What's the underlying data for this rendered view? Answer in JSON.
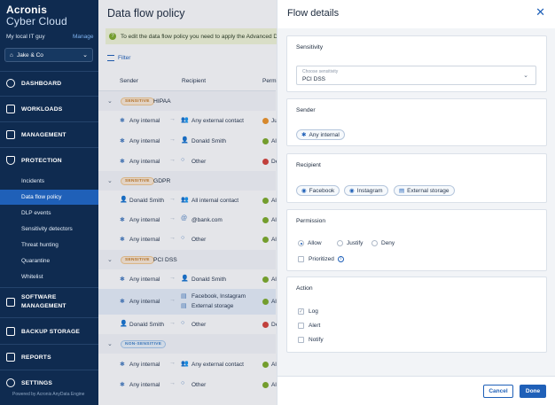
{
  "sidebar": {
    "brand_line1": "Acronis",
    "brand_line2": "Cyber Cloud",
    "account": "My local IT guy",
    "manage": "Manage",
    "tenant": "Jake & Co",
    "nav": {
      "dashboard": "DASHBOARD",
      "workloads": "WORKLOADS",
      "management": "MANAGEMENT",
      "protection": "PROTECTION",
      "software_management": "SOFTWARE\nMANAGEMENT",
      "software_1": "SOFTWARE",
      "software_2": "MANAGEMENT",
      "backup_storage": "BACKUP STORAGE",
      "reports": "REPORTS",
      "settings": "SETTINGS"
    },
    "sub": {
      "incidents": "Incidents",
      "data_flow_policy": "Data flow policy",
      "dlp_events": "DLP events",
      "sensitivity_detectors": "Sensitivity detectors",
      "threat_hunting": "Threat hunting",
      "quarantine": "Quarantine",
      "whitelist": "Whitelist"
    },
    "powered": "Powered by Acronis AnyData Engine"
  },
  "main": {
    "title": "Data flow policy",
    "banner": "To edit the data flow policy you need to apply the Advanced DLP",
    "filter": "Filter",
    "columns": {
      "sender": "Sender",
      "recipient": "Recipient",
      "permission": "Permi"
    },
    "groups": [
      {
        "badge": "SENSITIVE",
        "name": "HIPAA"
      },
      {
        "badge": "SENSITIVE",
        "name": "GDPR"
      },
      {
        "badge": "SENSITIVE",
        "name": "PCI DSS"
      },
      {
        "badge": "NON-SENSITIVE",
        "name": ""
      }
    ],
    "rows": [
      {
        "sender": "Any internal",
        "recipient": "Any external contact",
        "perm": "Jus"
      },
      {
        "sender": "Any internal",
        "recipient": "Donald Smith",
        "perm": "All"
      },
      {
        "sender": "Any internal",
        "recipient": "Other",
        "perm": "De"
      },
      {
        "sender": "Donald Smith",
        "recipient": "All internal contact",
        "perm": "All"
      },
      {
        "sender": "Any internal",
        "recipient": "@bank.com",
        "perm": "All"
      },
      {
        "sender": "Any internal",
        "recipient": "Other",
        "perm": "All"
      },
      {
        "sender": "Any internal",
        "recipient": "Donald Smith",
        "perm": "All"
      },
      {
        "sender": "Any internal",
        "recipient": "Facebook, Instagram",
        "recipient2": "External storage",
        "perm": "All"
      },
      {
        "sender": "Donald Smith",
        "recipient": "Other",
        "perm": "De"
      },
      {
        "sender": "Any internal",
        "recipient": "Any external contact",
        "perm": "All"
      },
      {
        "sender": "Any internal",
        "recipient": "Other",
        "perm": "All"
      }
    ],
    "colors": {
      "allow": "#7fae2a",
      "justify": "#f0962a",
      "deny": "#d8443b"
    }
  },
  "panel": {
    "title": "Flow details",
    "sensitivity": {
      "title": "Sensitivity",
      "label": "Choose sensitivity",
      "value": "PCI DSS"
    },
    "sender": {
      "title": "Sender",
      "chip": "Any internal"
    },
    "recipient": {
      "title": "Recipient",
      "chips": [
        "Facebook",
        "Instagram",
        "External storage"
      ]
    },
    "permission": {
      "title": "Permission",
      "options": [
        "Allow",
        "Justify",
        "Deny"
      ],
      "selected": "Allow",
      "prioritized": "Prioritized"
    },
    "action": {
      "title": "Action",
      "options": [
        "Log",
        "Alert",
        "Notify"
      ]
    },
    "cancel": "Cancel",
    "done": "Done"
  }
}
